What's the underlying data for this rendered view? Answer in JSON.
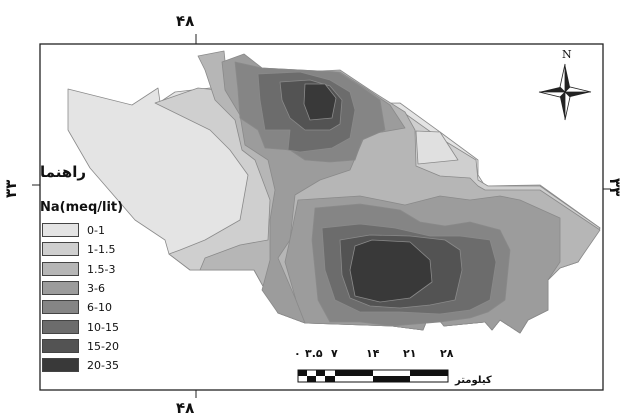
{
  "map": {
    "top_longitude_label": "۴۸",
    "bottom_longitude_label": "۴۸",
    "left_latitude_label": "۳۳",
    "right_latitude_label": "۳۳"
  },
  "legend": {
    "title": "راهنما",
    "subtitle": "Na(meq/lit)",
    "classes": [
      {
        "label": "0-1",
        "color": "#e4e4e4"
      },
      {
        "label": "1-1.5",
        "color": "#cfcfcf"
      },
      {
        "label": "1.5-3",
        "color": "#b6b6b6"
      },
      {
        "label": "3-6",
        "color": "#9c9c9c"
      },
      {
        "label": "6-10",
        "color": "#858585"
      },
      {
        "label": "10-15",
        "color": "#6c6c6c"
      },
      {
        "label": "15-20",
        "color": "#535353"
      },
      {
        "label": "20-35",
        "color": "#393939"
      }
    ]
  },
  "north_arrow": {
    "label": "N",
    "icon": "compass-rose-icon"
  },
  "scale_bar": {
    "ticks": [
      "۰",
      "۳.۵",
      "۷",
      "۱۴",
      "۲۱",
      "۲۸"
    ],
    "unit": "کیلومتر"
  }
}
